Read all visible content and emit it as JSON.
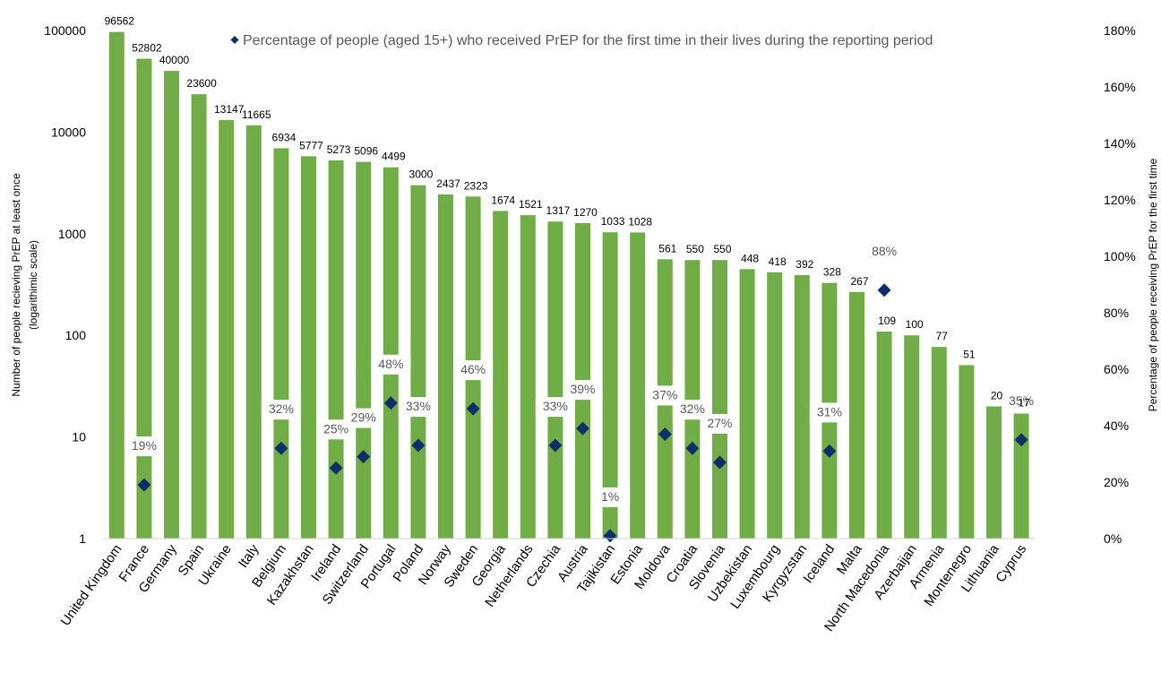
{
  "chart_data": {
    "type": "bar",
    "categories": [
      "United Kingdom",
      "France",
      "Germany",
      "Spain",
      "Ukraine",
      "Italy",
      "Belgium",
      "Kazakhstan",
      "Ireland",
      "Switzerland",
      "Portugal",
      "Poland",
      "Norway",
      "Sweden",
      "Georgia",
      "Netherlands",
      "Czechia",
      "Austria",
      "Tajikistan",
      "Estonia",
      "Moldova",
      "Croatia",
      "Slovenia",
      "Uzbekistan",
      "Luxembourg",
      "Kyrgyzstan",
      "Iceland",
      "Malta",
      "North Macedonia",
      "Azerbaijan",
      "Armenia",
      "Montenegro",
      "Lithuania",
      "Cyprus"
    ],
    "series": [
      {
        "values": [
          96562,
          52802,
          40000,
          23600,
          13147,
          11665,
          6934,
          5777,
          5273,
          5096,
          4499,
          3000,
          2437,
          2323,
          1674,
          1521,
          1317,
          1270,
          1033,
          1028,
          561,
          550,
          550,
          448,
          418,
          392,
          328,
          267,
          109,
          100,
          77,
          51,
          20,
          17
        ],
        "labels": [
          "96562",
          "52802",
          "40000",
          "23600",
          "13147",
          "11665",
          "6934",
          "5777",
          "5273",
          "5096",
          "4499",
          "3000",
          "2437",
          "2323",
          "1674",
          "1521",
          "1317",
          "1270",
          "1033",
          "1028",
          "561",
          "550",
          "550",
          "448",
          "418",
          "392",
          "328",
          "267",
          "109",
          "100",
          "77",
          "51",
          "20",
          "17"
        ],
        "axis": "left",
        "color": "#70ad47"
      },
      {
        "name": "Percentage of people (aged 15+) who received PrEP for the first time in their lives during the reporting period",
        "values": [
          null,
          19,
          null,
          null,
          null,
          null,
          32,
          null,
          25,
          29,
          48,
          33,
          null,
          46,
          null,
          null,
          33,
          39,
          1,
          null,
          37,
          32,
          27,
          null,
          null,
          null,
          31,
          null,
          88,
          null,
          null,
          null,
          null,
          35
        ],
        "labels": [
          null,
          "19%",
          null,
          null,
          null,
          null,
          "32%",
          null,
          "25%",
          "29%",
          "48%",
          "33%",
          null,
          "46%",
          null,
          null,
          "33%",
          "39%",
          "1%",
          null,
          "37%",
          "32%",
          "27%",
          null,
          null,
          null,
          "31%",
          null,
          "88%",
          null,
          null,
          null,
          null,
          "35%"
        ],
        "axis": "right",
        "marker": "diamond",
        "color": "#0f2d69"
      }
    ],
    "ylabel": "Number of people recieving PrEP at least once",
    "ylabel_sub": "(logarithimic scale)",
    "y2label": "Percentage of people receiving PrEP for the first time",
    "y_scale": "log",
    "ylim": [
      1,
      100000
    ],
    "y_ticks": [
      "1",
      "10",
      "100",
      "1000",
      "10000",
      "100000"
    ],
    "y2lim": [
      0,
      180
    ],
    "y2_ticks": [
      "0%",
      "20%",
      "40%",
      "60%",
      "80%",
      "100%",
      "120%",
      "140%",
      "160%",
      "180%"
    ],
    "legend_position": "top",
    "grid": false
  }
}
